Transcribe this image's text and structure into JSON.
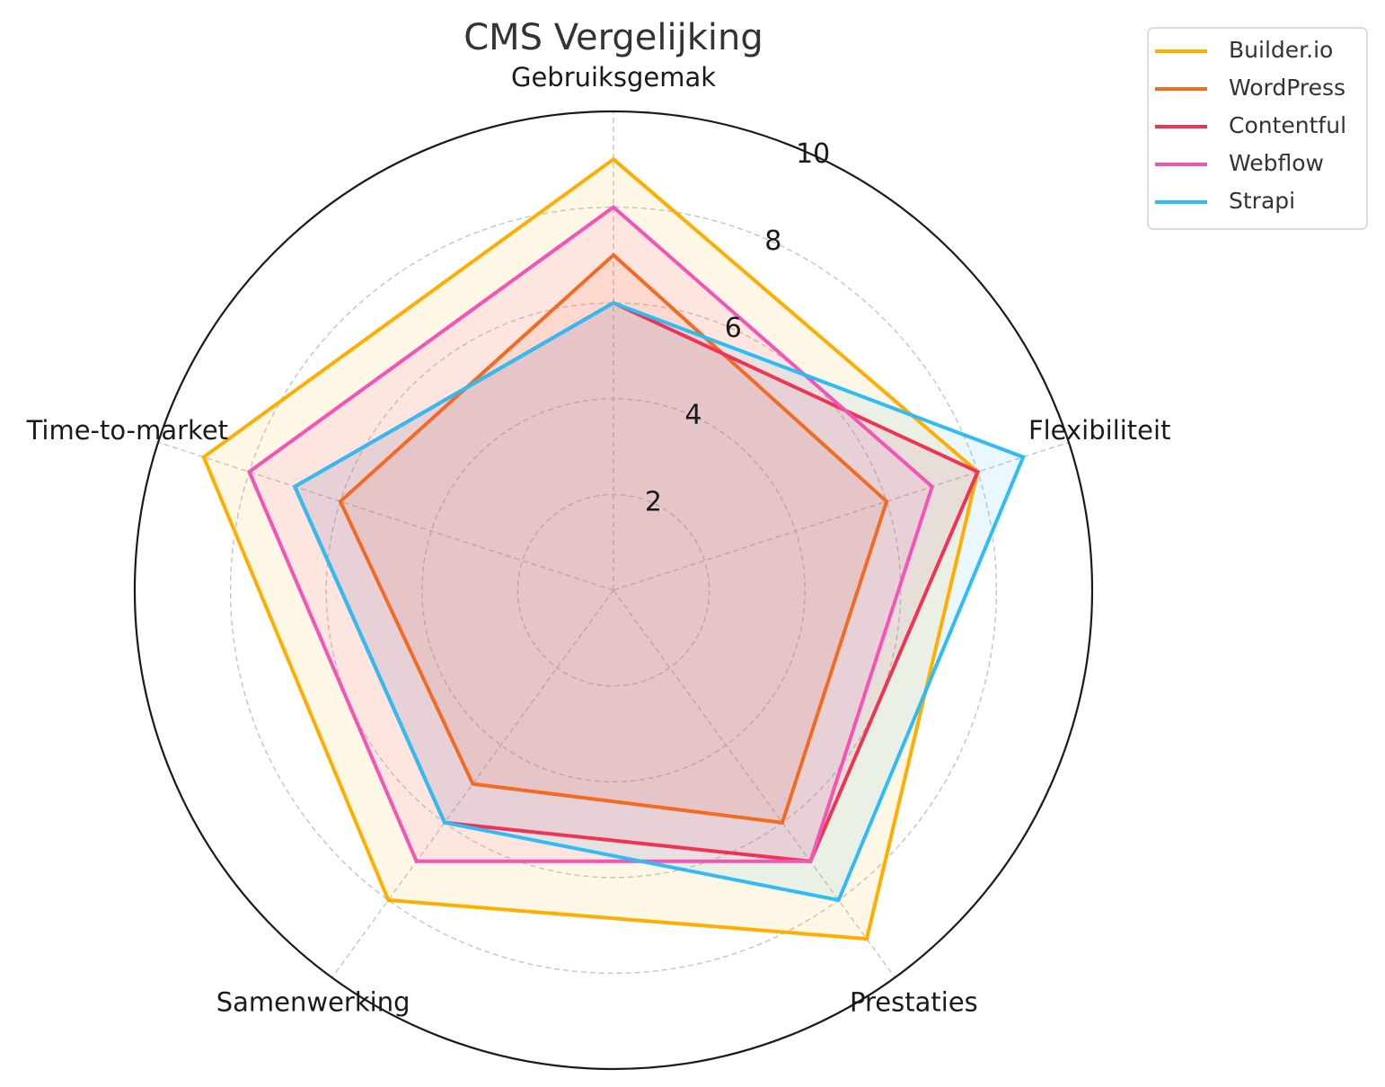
{
  "chart_data": {
    "type": "radar",
    "title": "CMS Vergelijking",
    "axes": [
      "Gebruiksgemak",
      "Flexibiliteit",
      "Prestaties",
      "Samenwerking",
      "Time-to-market"
    ],
    "rlim": [
      0,
      10
    ],
    "rticks": [
      2,
      4,
      6,
      8,
      10
    ],
    "grid": true,
    "legend_position": "top-right",
    "series": [
      {
        "name": "Builder.io",
        "values": [
          9,
          8,
          9,
          8,
          9
        ],
        "color": "#FFAE00"
      },
      {
        "name": "WordPress",
        "values": [
          7,
          6,
          6,
          5,
          6
        ],
        "color": "#F26B25"
      },
      {
        "name": "Contentful",
        "values": [
          6,
          8,
          7,
          6,
          7
        ],
        "color": "#EE3355"
      },
      {
        "name": "Webflow",
        "values": [
          8,
          7,
          7,
          7,
          8
        ],
        "color": "#F553B8"
      },
      {
        "name": "Strapi",
        "values": [
          6,
          9,
          8,
          6,
          7
        ],
        "color": "#2EBCF5"
      }
    ]
  }
}
